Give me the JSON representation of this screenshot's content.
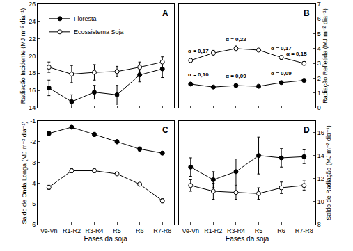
{
  "chart_data": [
    {
      "type": "line",
      "title": "A",
      "categories": [
        "Ve-Vn",
        "R1-R2",
        "R3-R4",
        "R5",
        "R6",
        "R7-R8"
      ],
      "ylabel": "Radiação Incidente (MJ m⁻² dia⁻¹)",
      "ylim": [
        14,
        26
      ],
      "yticks": [
        14,
        16,
        18,
        20,
        22,
        24,
        26
      ],
      "tick_labels": "y",
      "legend": "upper left",
      "series": [
        {
          "name": "Floresta",
          "color": "#000000",
          "marker": "circle",
          "values": [
            16.3,
            14.7,
            15.8,
            15.5,
            17.8,
            18.5
          ],
          "errors": [
            0.9,
            0.8,
            0.8,
            1.1,
            0.8,
            1.0
          ]
        },
        {
          "name": "Ecossistema Soja",
          "color": "#000000",
          "marker": "circle-open",
          "values": [
            18.7,
            17.9,
            18.1,
            18.2,
            18.7,
            19.3
          ],
          "errors": [
            0.6,
            1.0,
            0.9,
            0.6,
            0.6,
            0.6
          ]
        }
      ]
    },
    {
      "type": "line",
      "title": "B",
      "categories": [
        "Ve-Vn",
        "R1-R2",
        "R3-R4",
        "R5",
        "R6",
        "R7-R8"
      ],
      "ylabel": "Radiação Refletida (MJ m⁻² dia⁻¹)",
      "ylim": [
        0,
        7
      ],
      "yticks": [
        0,
        1,
        2,
        3,
        4,
        5,
        6,
        7
      ],
      "tick_labels": "y",
      "series": [
        {
          "name": "Floresta",
          "color": "#000000",
          "marker": "circle",
          "values": [
            1.6,
            1.4,
            1.5,
            1.45,
            1.7,
            1.85
          ],
          "errors": [
            0.08,
            0.08,
            0.08,
            0.08,
            0.08,
            0.08
          ]
        },
        {
          "name": "Ecossistema Soja",
          "color": "#000000",
          "marker": "circle-open",
          "values": [
            3.2,
            3.7,
            4.0,
            3.9,
            3.4,
            3.0
          ],
          "errors": [
            0.12,
            0.18,
            0.18,
            0.12,
            0.12,
            0.12
          ]
        }
      ],
      "annotations": [
        {
          "series": "Ecossistema Soja",
          "category": "Ve-Vn",
          "text": "α = 0,17"
        },
        {
          "series": "Ecossistema Soja",
          "category": "R3-R4",
          "text": "α = 0,22"
        },
        {
          "series": "Ecossistema Soja",
          "category": "R6",
          "text": "α = 0,17"
        },
        {
          "series": "Ecossistema Soja",
          "category": "R7-R8",
          "text": "α = 0,15"
        },
        {
          "series": "Floresta",
          "category": "Ve-Vn",
          "text": "α = 0,10"
        },
        {
          "series": "Floresta",
          "category": "R3-R4",
          "text": "α = 0,09"
        },
        {
          "series": "Floresta",
          "category": "R6",
          "text": "α = 0,09"
        }
      ]
    },
    {
      "type": "line",
      "title": "C",
      "categories": [
        "Ve-Vn",
        "R1-R2",
        "R3-R4",
        "R5",
        "R6",
        "R7-R8"
      ],
      "xlabel": "Fases da soja",
      "ylabel": "Saldo de Onda Longa (MJ m⁻² dia⁻¹)",
      "ylim": [
        -6,
        -1
      ],
      "yticks": [
        -6,
        -5,
        -4,
        -3,
        -2,
        -1
      ],
      "series": [
        {
          "name": "Floresta",
          "color": "#000000",
          "marker": "circle",
          "values": [
            -1.6,
            -1.3,
            -1.65,
            -2.0,
            -2.35,
            -2.55
          ],
          "errors": [
            0.07,
            0.08,
            0.1,
            0.1,
            0.1,
            0.08
          ]
        },
        {
          "name": "Ecossistema Soja",
          "color": "#000000",
          "marker": "circle-open",
          "values": [
            -4.2,
            -3.4,
            -3.4,
            -3.55,
            -4.05,
            -4.85
          ],
          "errors": [
            0.1,
            0.1,
            0.1,
            0.08,
            0.08,
            0.1
          ]
        }
      ]
    },
    {
      "type": "line",
      "title": "D",
      "categories": [
        "Ve-Vn",
        "R1-R2",
        "R3-R4",
        "R5",
        "R6",
        "R7-R8"
      ],
      "xlabel": "Fases da soja",
      "ylabel": "Saldo de Radiação (MJ m⁻² dia⁻¹)",
      "ylim": [
        8,
        17
      ],
      "yticks": [
        8,
        10,
        12,
        14,
        16
      ],
      "series": [
        {
          "name": "Floresta",
          "color": "#000000",
          "marker": "circle",
          "values": [
            13.0,
            11.9,
            12.6,
            14.0,
            13.8,
            13.9
          ],
          "errors": [
            0.8,
            0.7,
            1.1,
            1.6,
            0.8,
            0.6
          ]
        },
        {
          "name": "Ecossistema Soja",
          "color": "#000000",
          "marker": "circle-open",
          "values": [
            11.4,
            10.9,
            10.8,
            10.7,
            11.2,
            11.4
          ],
          "errors": [
            0.5,
            0.7,
            0.6,
            0.5,
            0.5,
            0.4
          ]
        }
      ]
    }
  ]
}
